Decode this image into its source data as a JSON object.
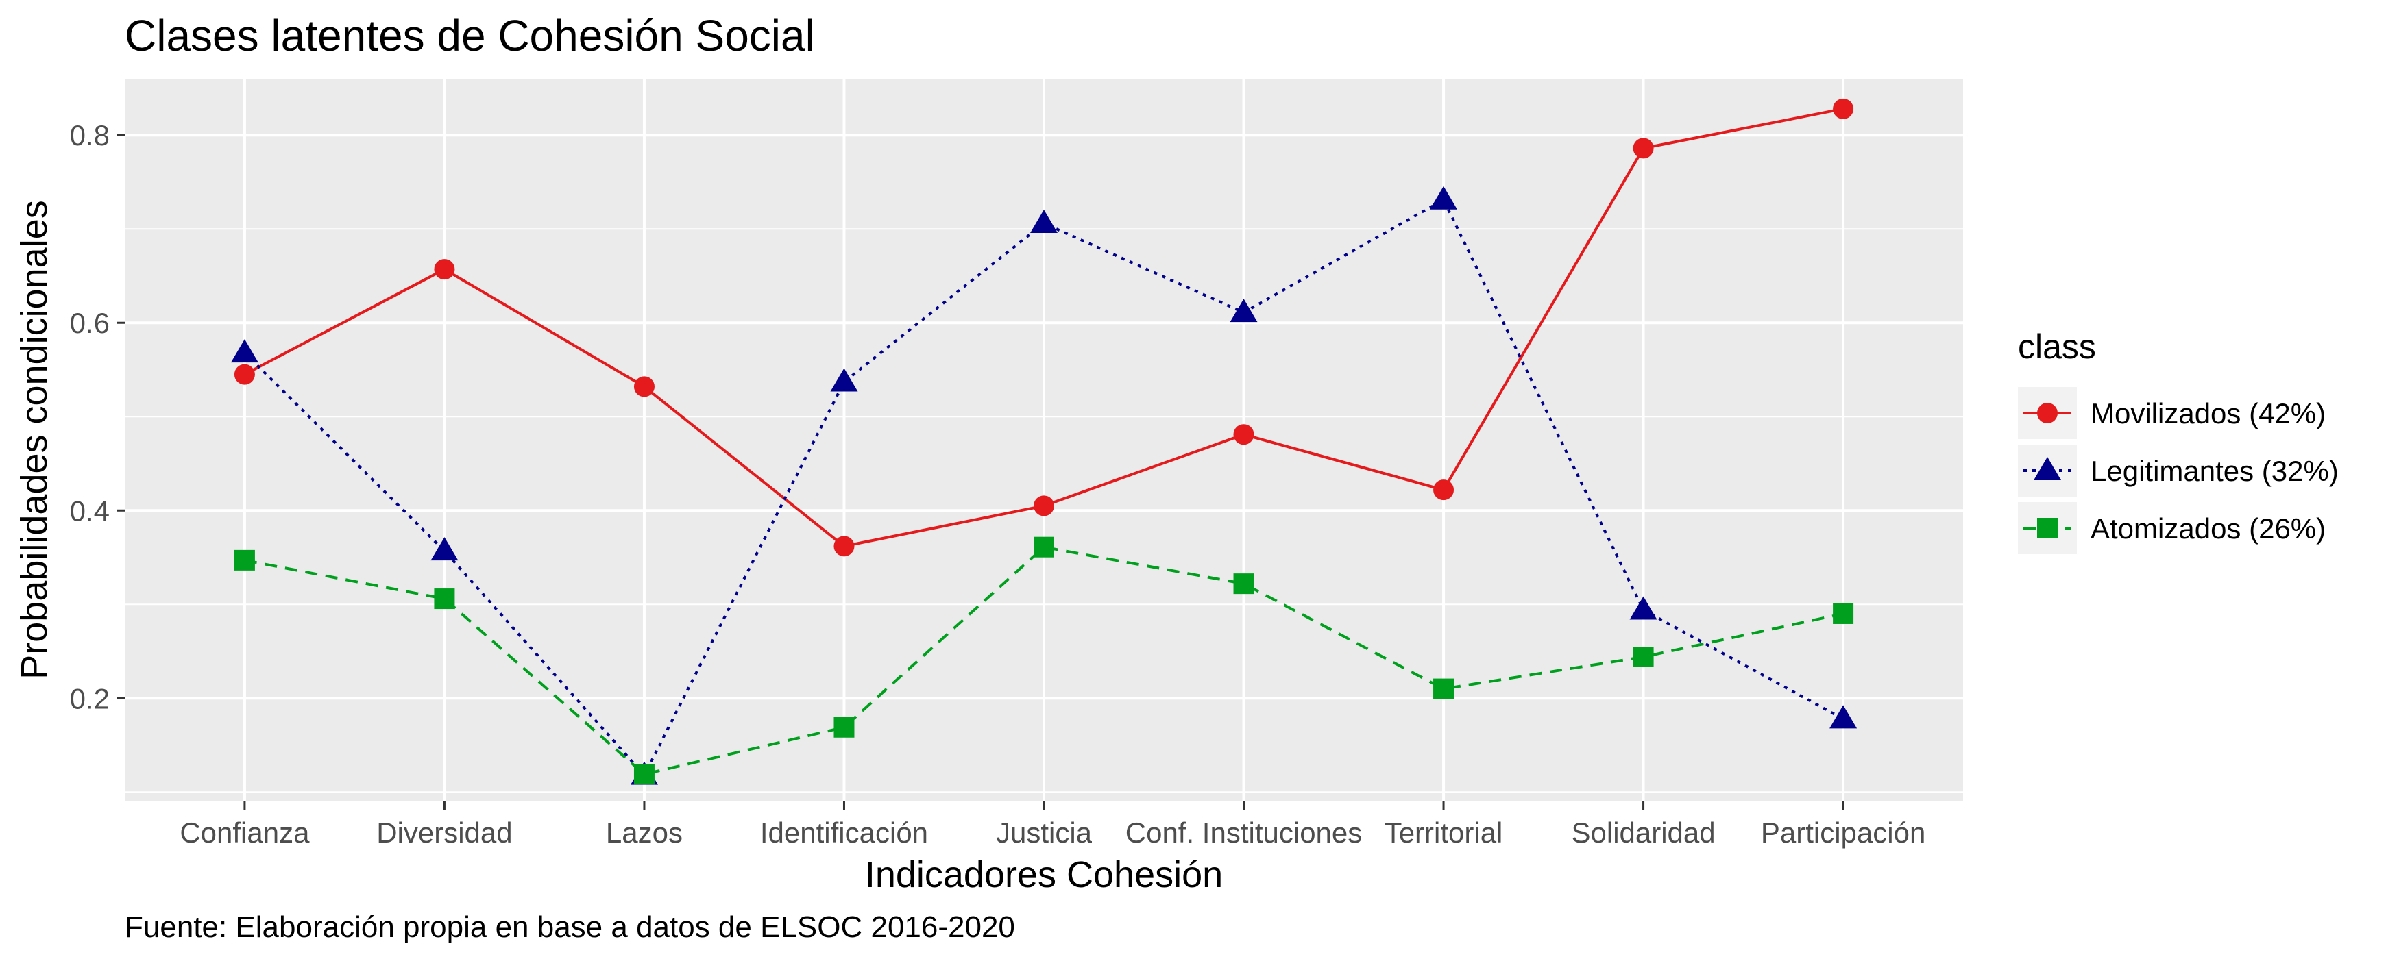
{
  "chart_data": {
    "type": "line",
    "title": "Clases latentes de Cohesión Social",
    "xlabel": "Indicadores Cohesión",
    "ylabel": "Probabilidades condicionales",
    "caption": "Fuente: Elaboración propia en base a datos de ELSOC 2016-2020",
    "categories": [
      "Confianza",
      "Diversidad",
      "Lazos",
      "Identificación",
      "Justicia",
      "Conf. Instituciones",
      "Territorial",
      "Solidaridad",
      "Participación"
    ],
    "ylim": [
      0.09,
      0.86
    ],
    "yticks": [
      0.2,
      0.4,
      0.6,
      0.8
    ],
    "ytick_labels": [
      "0.2",
      "0.4",
      "0.6",
      "0.8"
    ],
    "grid": true,
    "legend": {
      "title": "class",
      "position": "right"
    },
    "series": [
      {
        "name": "Movilizados (42%)",
        "color": "#e41a1c",
        "marker": "circle",
        "line_style": "solid",
        "values": [
          0.545,
          0.657,
          0.532,
          0.362,
          0.405,
          0.481,
          0.422,
          0.786,
          0.828
        ]
      },
      {
        "name": "Legitimantes (32%)",
        "color": "#00008b",
        "marker": "triangle",
        "line_style": "dotted",
        "values": [
          0.568,
          0.357,
          0.118,
          0.537,
          0.706,
          0.611,
          0.731,
          0.294,
          0.178
        ]
      },
      {
        "name": "Atomizados (26%)",
        "color": "#00a01e",
        "marker": "square",
        "line_style": "dashed",
        "values": [
          0.347,
          0.306,
          0.119,
          0.169,
          0.361,
          0.322,
          0.21,
          0.244,
          0.29
        ]
      }
    ]
  }
}
